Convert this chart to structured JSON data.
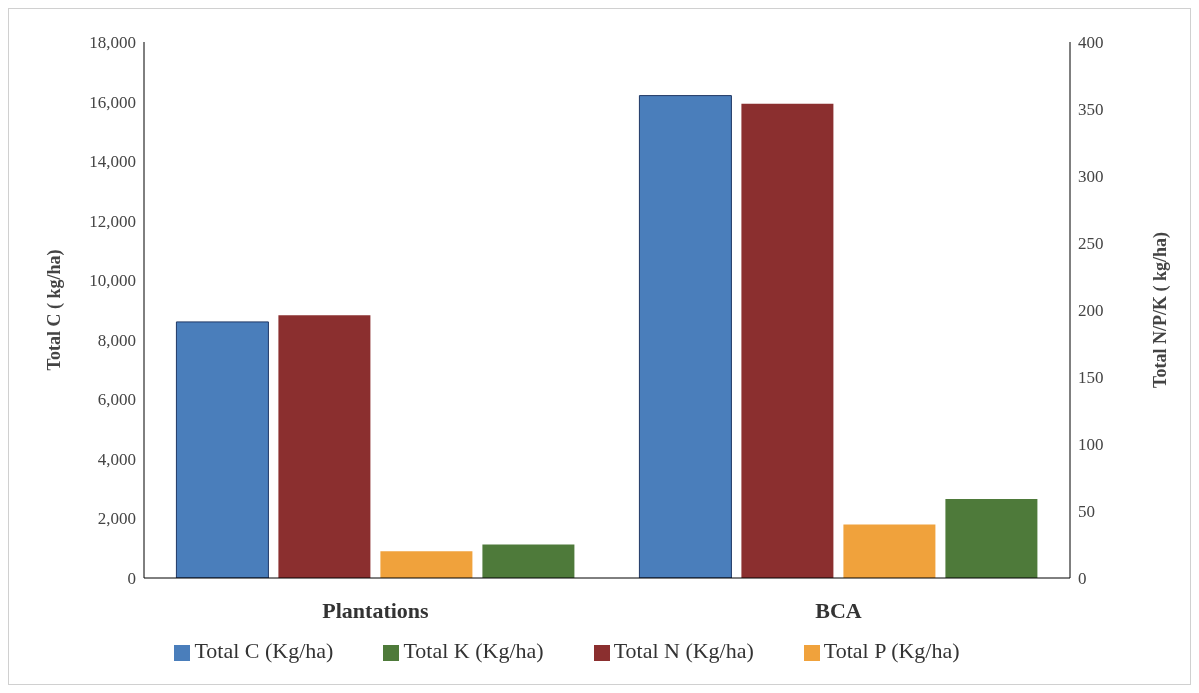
{
  "chart_data": {
    "type": "bar",
    "categories": [
      "Plantations",
      "BCA"
    ],
    "series": [
      {
        "name": "Total C (Kg/ha)",
        "color": "#4a7ebb",
        "values": [
          8600,
          16200
        ],
        "axis": "y"
      },
      {
        "name": "Total N (Kg/ha)",
        "color": "#8b2f2f",
        "values": [
          196,
          354
        ],
        "axis": "y2"
      },
      {
        "name": "Total P (Kg/ha)",
        "color": "#f0a23c",
        "values": [
          20,
          40
        ],
        "axis": "y2"
      },
      {
        "name": "Total K (Kg/ha)",
        "color": "#4e7a3a",
        "values": [
          25,
          59
        ],
        "axis": "y2"
      }
    ],
    "ylabel": "Total C ( kg/ha)",
    "y2label": "Total N/P/K ( kg/ha)",
    "ylim": [
      0,
      18000
    ],
    "yticks": [
      0,
      {
        "value": 2000,
        "label": "2,000"
      },
      {
        "value": 4000,
        "label": "4,000"
      },
      {
        "value": 6000,
        "label": "6,000"
      },
      {
        "value": 8000,
        "label": "8,000"
      },
      {
        "value": 10000,
        "label": "10,000"
      },
      {
        "value": 12000,
        "label": "12,000"
      },
      {
        "value": 14000,
        "label": "14,000"
      },
      {
        "value": 16000,
        "label": "16,000"
      },
      {
        "value": 18000,
        "label": "18,000"
      }
    ],
    "y2lim": [
      0,
      400
    ],
    "y2ticks": [
      0,
      50,
      100,
      150,
      200,
      250,
      300,
      350,
      400
    ],
    "grid": false,
    "legend": "bottom"
  }
}
